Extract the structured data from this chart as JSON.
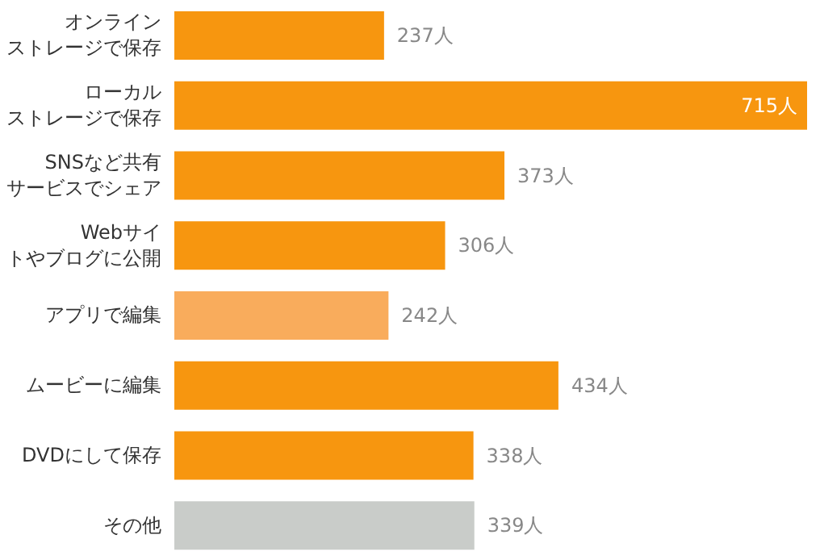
{
  "chart_data": {
    "type": "bar",
    "orientation": "horizontal",
    "categories": [
      "オンラインストレージで保存",
      "ローカルストレージで保存",
      "SNSなど共有サービスでシェア",
      "Webサイトやブログに公開",
      "アプリで編集",
      "ムービーに編集",
      "DVDにして保存",
      "その他"
    ],
    "values": [
      237,
      715,
      373,
      306,
      242,
      434,
      338,
      339
    ],
    "colors": [
      "#f7960f",
      "#f7960f",
      "#f7960f",
      "#f7960f",
      "#f9ac5c",
      "#f7960f",
      "#f7960f",
      "#c9ccc9"
    ],
    "value_labels": [
      "237人",
      "715人",
      "373人",
      "306人",
      "242人",
      "434人",
      "338人",
      "339人"
    ]
  }
}
